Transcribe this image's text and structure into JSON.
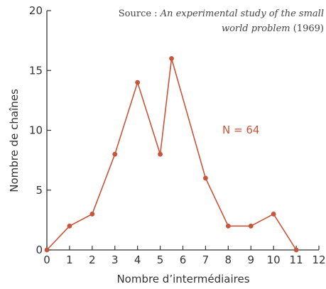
{
  "chart_data": {
    "type": "line",
    "title": "",
    "xlabel": "Nombre d’intermédiaires",
    "ylabel": "Nombre de chaînes",
    "xlim": [
      0,
      12
    ],
    "ylim": [
      0,
      20
    ],
    "x_ticks": [
      0,
      1,
      2,
      3,
      4,
      5,
      6,
      7,
      8,
      9,
      10,
      11,
      12
    ],
    "y_ticks": [
      0,
      5,
      10,
      15,
      20
    ],
    "grid": false,
    "series": [
      {
        "x": [
          0,
          1,
          2,
          3,
          4,
          5,
          5.5,
          7,
          8,
          9,
          10,
          11
        ],
        "y": [
          0,
          2,
          3,
          8,
          14,
          8,
          16,
          6,
          2,
          2,
          3,
          0
        ]
      }
    ],
    "colors": {
      "series": "#c8553a",
      "axis": "#333333"
    },
    "source_annotation": {
      "prefix": "Source : ",
      "title_line1": "An experimental study of the small",
      "title_line2": "world problem",
      "year": " (1969)"
    },
    "annotation": "N = 64"
  }
}
